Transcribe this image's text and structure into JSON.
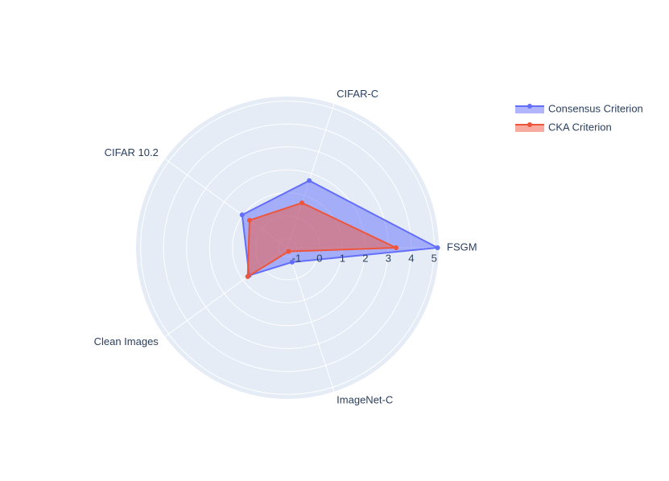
{
  "chart_data": {
    "type": "radar",
    "categories": [
      "FSGM",
      "CIFAR-C",
      "CIFAR 10.2",
      "Clean Images",
      "ImageNet-C"
    ],
    "series": [
      {
        "name": "Consensus Criterion",
        "color": "#636efa",
        "values": [
          5.15,
          1.68,
          1.04,
          0.66,
          -0.74
        ]
      },
      {
        "name": "CKA Criterion",
        "color": "#ef553b",
        "values": [
          3.34,
          0.66,
          0.64,
          0.74,
          -1.23
        ]
      }
    ],
    "rlim": [
      -1.4,
      5.2
    ],
    "rticks": [
      -1,
      0,
      1,
      2,
      3,
      4,
      5
    ],
    "grid": true,
    "legend": "top-right"
  }
}
